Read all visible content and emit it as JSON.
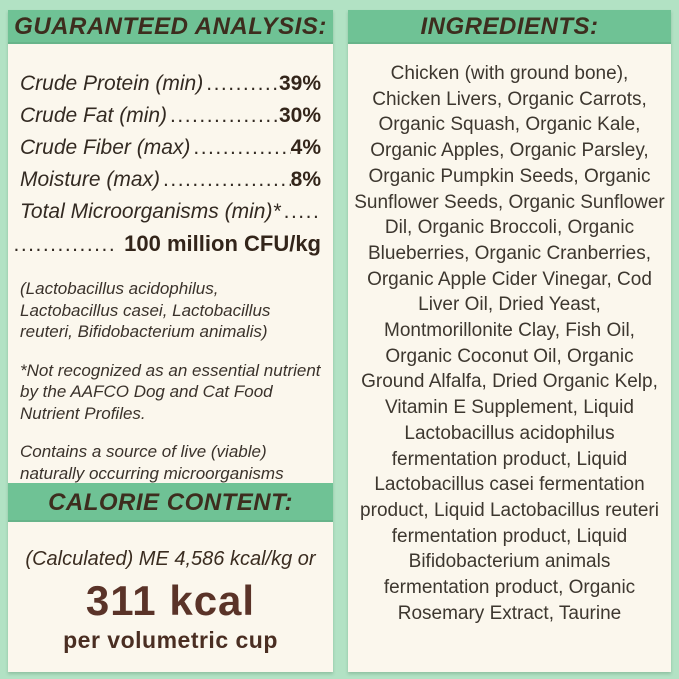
{
  "colors": {
    "background_mint": "#b2e2c4",
    "header_green": "#6fc295",
    "panel_cream": "#fbf7ed",
    "header_text_brown": "#3d2d1e",
    "body_text": "#332a22",
    "kcal_maroon": "#5a3328"
  },
  "left_panel": {
    "analysis": {
      "title": "GUARANTEED ANALYSIS:",
      "rows": [
        {
          "label": "Crude Protein (min)",
          "leader": "........................................",
          "value": "39%"
        },
        {
          "label": "Crude Fat (min)",
          "leader": "........................................",
          "value": "30%"
        },
        {
          "label": "Crude Fiber (max)",
          "leader": "........................................",
          "value": "4%"
        },
        {
          "label": "Moisture (max)",
          "leader": "........................................",
          "value": "8%"
        },
        {
          "label": "Total Microorganisms (min)*",
          "leader": "........................................",
          "value": ""
        }
      ],
      "continuation": {
        "leader": "..............",
        "value": "100 million CFU/kg"
      },
      "notes": [
        "(Lactobacillus acidophilus, Lactobacillus casei, Lactobacillus reuteri, Bifidobacterium animalis)",
        "*Not recognized as an essential nutrient by the AAFCO Dog and Cat Food Nutrient Profiles.",
        "Contains a source of live (viable) naturally occurring microorganisms"
      ]
    },
    "calories": {
      "title": "CALORIE CONTENT:",
      "line1": "(Calculated) ME 4,586 kcal/kg or",
      "kcal": "311 kcal",
      "line2": "per volumetric cup"
    }
  },
  "right_panel": {
    "title": "INGREDIENTS:",
    "text": "Chicken (with ground bone), Chicken Livers, Organic Carrots, Organic Squash, Organic Kale, Organic Apples, Organic Parsley, Organic Pumpkin Seeds, Organic Sunflower Seeds, Organic Sunflower Dil, Organic Broccoli, Organic Blueberries, Organic Cranberries, Organic Apple Cider Vinegar, Cod Liver Oil, Dried Yeast, Montmorillonite Clay, Fish Oil, Organic Coconut Oil, Organic Ground Alfalfa, Dried Organic Kelp, Vitamin E Supplement, Liquid Lactobacillus acidophilus fermentation product, Liquid Lactobacillus casei fermentation product, Liquid Lactobacillus reuteri fermentation product, Liquid Bifidobacterium animals fermentation product, Organic Rosemary Extract, Taurine"
  }
}
